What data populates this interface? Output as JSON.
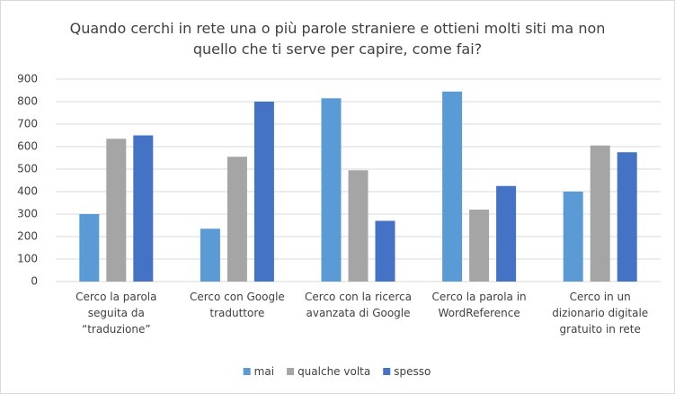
{
  "chart_data": {
    "type": "bar",
    "title": "Quando cerchi in rete una o più parole straniere e ottieni molti siti ma non quello che ti serve per capire, come fai?",
    "categories": [
      [
        "Cerco  la parola",
        "seguita da",
        "“traduzione”"
      ],
      [
        "Cerco con Google",
        "traduttore"
      ],
      [
        "Cerco con la ricerca",
        "avanzata di Google"
      ],
      [
        "Cerco la parola in",
        "WordReference"
      ],
      [
        "Cerco in un",
        "dizionario digitale",
        "gratuito in rete"
      ]
    ],
    "series": [
      {
        "name": "mai",
        "color": "#5b9bd5",
        "values": [
          300,
          235,
          815,
          845,
          400
        ]
      },
      {
        "name": "qualche volta",
        "color": "#a5a5a5",
        "values": [
          635,
          555,
          495,
          320,
          605
        ]
      },
      {
        "name": "spesso",
        "color": "#4472c4",
        "values": [
          650,
          800,
          270,
          425,
          575
        ]
      }
    ],
    "ylim": [
      0,
      900
    ],
    "yticks": [
      0,
      100,
      200,
      300,
      400,
      500,
      600,
      700,
      800,
      900
    ],
    "grid": true,
    "legend": "bottom"
  }
}
